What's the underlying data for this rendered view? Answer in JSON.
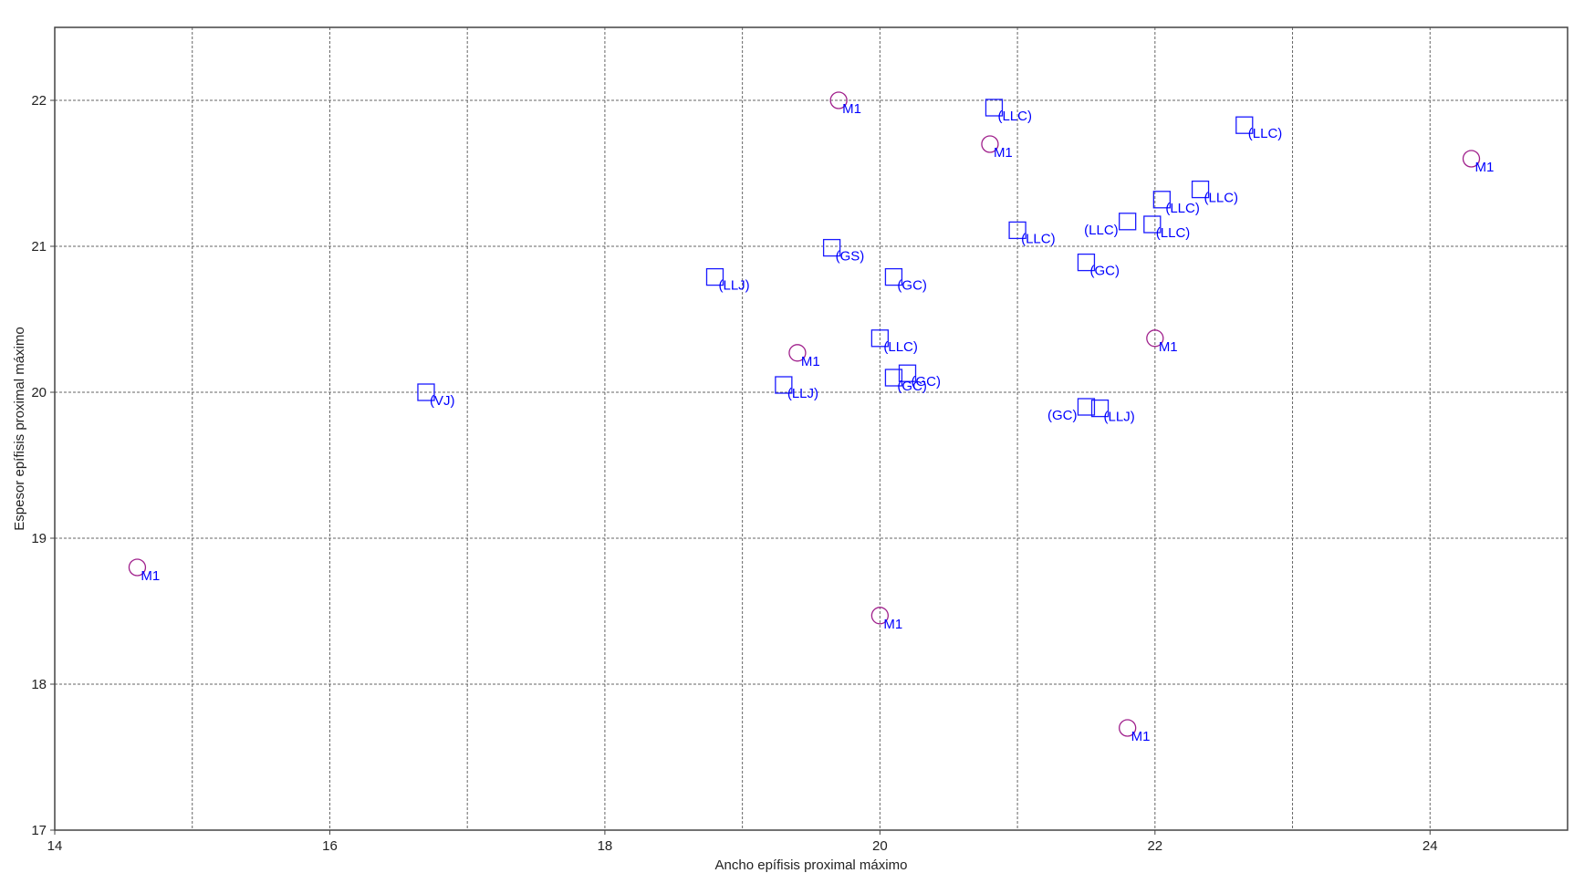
{
  "chart_data": {
    "type": "scatter",
    "xlabel": "Ancho epífisis proximal máximo",
    "ylabel": "Espesor epífisis proximal máximo",
    "xlim": [
      14,
      25
    ],
    "ylim": [
      17,
      22.5
    ],
    "xticks": [
      14,
      16,
      18,
      20,
      22,
      24
    ],
    "yticks": [
      17,
      18,
      19,
      20,
      21,
      22
    ],
    "xgrid": [
      15,
      17,
      19,
      21,
      23
    ],
    "ygrid": [
      18,
      19,
      20,
      21,
      22
    ],
    "grid": true,
    "colors": {
      "circle": "#a0208c",
      "square": "#1a1aff",
      "label": "#0000ff"
    },
    "series": [
      {
        "marker": "circle",
        "points": [
          {
            "x": 14.6,
            "y": 18.8,
            "label": "M1"
          },
          {
            "x": 19.4,
            "y": 20.27,
            "label": "M1"
          },
          {
            "x": 19.7,
            "y": 22.0,
            "label": "M1"
          },
          {
            "x": 20.0,
            "y": 18.47,
            "label": "M1"
          },
          {
            "x": 20.8,
            "y": 21.7,
            "label": "M1"
          },
          {
            "x": 21.8,
            "y": 17.7,
            "label": "M1"
          },
          {
            "x": 22.0,
            "y": 20.37,
            "label": "M1"
          },
          {
            "x": 24.3,
            "y": 21.6,
            "label": "M1"
          }
        ]
      },
      {
        "marker": "square",
        "points": [
          {
            "x": 16.7,
            "y": 20.0,
            "label": "(VJ)"
          },
          {
            "x": 18.8,
            "y": 20.79,
            "label": "(LLJ)"
          },
          {
            "x": 19.3,
            "y": 20.05,
            "label": "(LLJ)"
          },
          {
            "x": 19.65,
            "y": 20.99,
            "label": "(GS)"
          },
          {
            "x": 20.0,
            "y": 20.37,
            "label": "(LLC)"
          },
          {
            "x": 20.1,
            "y": 20.79,
            "label": "(GC)"
          },
          {
            "x": 20.2,
            "y": 20.13,
            "label": "(GC)"
          },
          {
            "x": 20.1,
            "y": 20.1,
            "label": "(GC)"
          },
          {
            "x": 20.83,
            "y": 21.95,
            "label": "(LLC)"
          },
          {
            "x": 21.0,
            "y": 21.11,
            "label": "(LLC)"
          },
          {
            "x": 21.5,
            "y": 20.89,
            "label": "(GC)"
          },
          {
            "x": 21.5,
            "y": 19.9,
            "label": "(GC)",
            "left": true
          },
          {
            "x": 21.6,
            "y": 19.89,
            "label": "(LLJ)"
          },
          {
            "x": 21.8,
            "y": 21.17,
            "label": "(LLC)",
            "left": true
          },
          {
            "x": 21.98,
            "y": 21.15,
            "label": "(LLC)"
          },
          {
            "x": 22.05,
            "y": 21.32,
            "label": "(LLC)"
          },
          {
            "x": 22.33,
            "y": 21.39,
            "label": "(LLC)"
          },
          {
            "x": 22.65,
            "y": 21.83,
            "label": "(LLC)"
          }
        ]
      }
    ]
  }
}
